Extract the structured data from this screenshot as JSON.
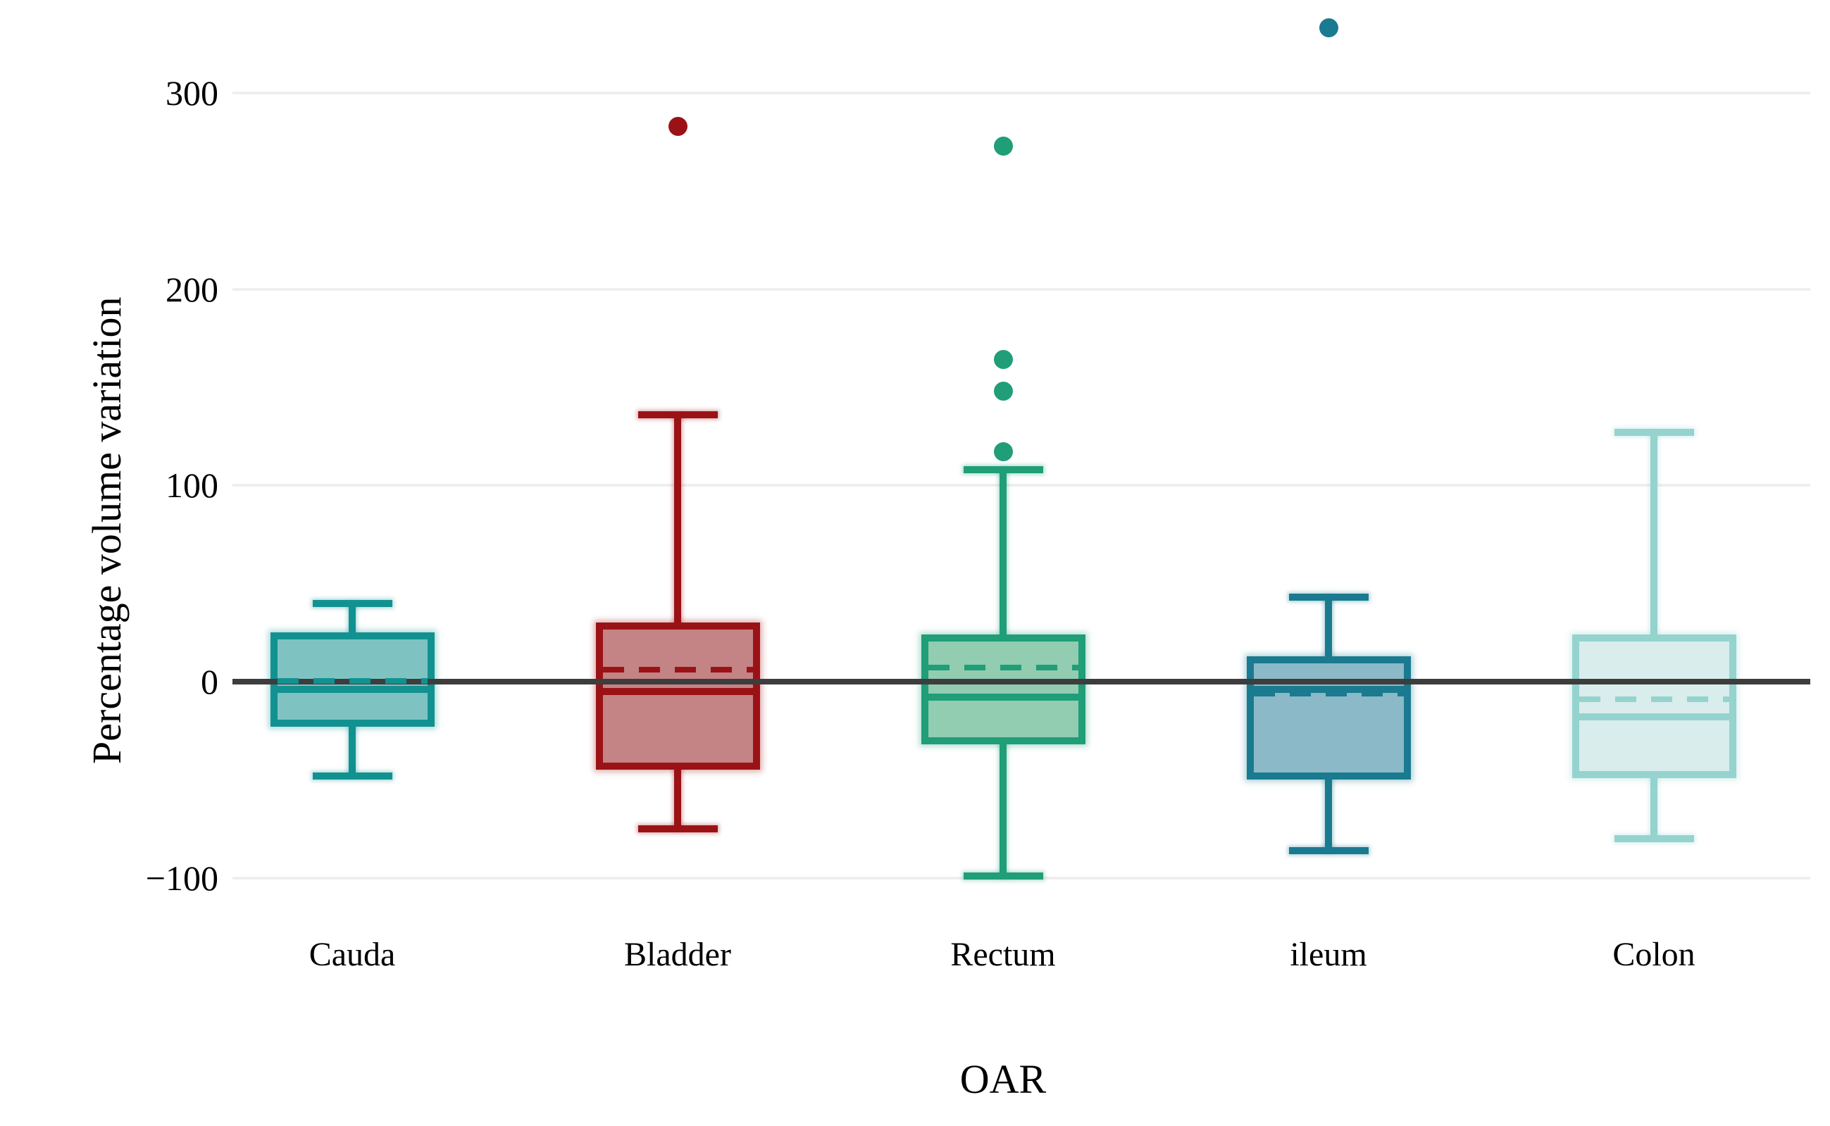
{
  "chart_data": {
    "type": "boxplot",
    "title": "",
    "xlabel": "OAR",
    "ylabel": "Percentage volume variation",
    "categories": [
      "Cauda",
      "Bladder",
      "Rectum",
      "ileum",
      "Colon"
    ],
    "y_ticks": [
      300,
      200,
      100,
      0,
      -100
    ],
    "ylim": [
      -130,
      345
    ],
    "grid": "horizontal-light",
    "zero_line": true,
    "zero_line_color": "#3d3d3d",
    "gridline_color": "#efefef",
    "mean_line_style": "dashed",
    "median_line_style": "solid",
    "series": [
      {
        "name": "Cauda",
        "whisker_low": -48,
        "q1": -23,
        "median": -4,
        "mean": 0.5,
        "q3": 25,
        "whisker_high": 40,
        "outliers": [],
        "border_color": "#129191",
        "fill_color": "#7fc2c2"
      },
      {
        "name": "Bladder",
        "whisker_low": -75,
        "q1": -45,
        "median": -5,
        "mean": 6,
        "q3": 30,
        "whisker_high": 136,
        "outliers": [
          283
        ],
        "border_color": "#9b1216",
        "fill_color": "#c48385"
      },
      {
        "name": "Rectum",
        "whisker_low": -99,
        "q1": -32,
        "median": -8,
        "mean": 7,
        "q3": 24,
        "whisker_high": 108,
        "outliers": [
          117,
          148,
          164,
          273
        ],
        "border_color": "#1f9e77",
        "fill_color": "#92ccb1"
      },
      {
        "name": "ileum",
        "whisker_low": -86,
        "q1": -50,
        "median": -4,
        "mean": -6,
        "q3": 13,
        "whisker_high": 43,
        "outliers": [
          333
        ],
        "border_color": "#1a7a90",
        "fill_color": "#8bb9c7"
      },
      {
        "name": "Colon",
        "whisker_low": -80,
        "q1": -49,
        "median": -18,
        "mean": -9,
        "q3": 24,
        "whisker_high": 127,
        "outliers": [],
        "border_color": "#95d3cf",
        "fill_color": "#d9edec"
      }
    ]
  }
}
